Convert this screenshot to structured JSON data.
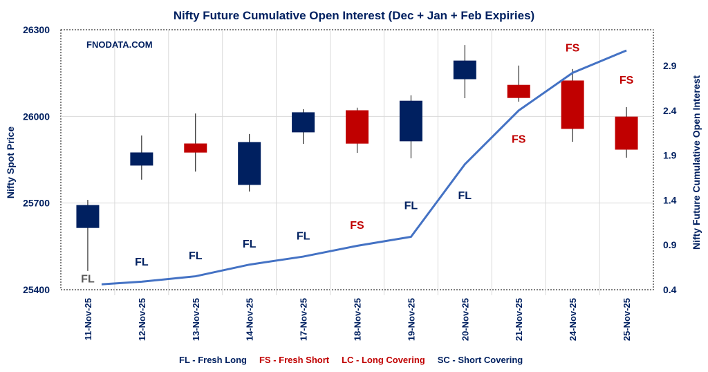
{
  "chart_data": {
    "type": "candlestick+line",
    "title": "Nifty Future Cumulative Open Interest (Dec + Jan  + Feb Expiries)",
    "watermark": "FNODATA.COM",
    "ylabel_left": "Nifty Spot Price",
    "ylabel_right": "Nifty Future Cumulative Open Interest",
    "ylim_left": [
      25400,
      26300
    ],
    "yticks_left": [
      25400,
      25700,
      26000,
      26300
    ],
    "ylim_right": [
      0.4,
      3.2
    ],
    "yticks_right": [
      0.4,
      0.9,
      1.4,
      1.9,
      2.4,
      2.9
    ],
    "grid": true,
    "categories": [
      "11-Nov-25",
      "12-Nov-25",
      "13-Nov-25",
      "14-Nov-25",
      "17-Nov-25",
      "18-Nov-25",
      "19-Nov-25",
      "20-Nov-25",
      "21-Nov-25",
      "24-Nov-25",
      "25-Nov-25"
    ],
    "candles": [
      {
        "open": 25615,
        "high": 25711,
        "low": 25465,
        "close": 25692
      },
      {
        "open": 25831,
        "high": 25934,
        "low": 25781,
        "close": 25874
      },
      {
        "open": 25905,
        "high": 26010,
        "low": 25809,
        "close": 25876
      },
      {
        "open": 25764,
        "high": 25939,
        "low": 25740,
        "close": 25910
      },
      {
        "open": 25946,
        "high": 26025,
        "low": 25905,
        "close": 26013
      },
      {
        "open": 26020,
        "high": 26030,
        "low": 25874,
        "close": 25907
      },
      {
        "open": 25915,
        "high": 26073,
        "low": 25855,
        "close": 26053
      },
      {
        "open": 26130,
        "high": 26247,
        "low": 26063,
        "close": 26192
      },
      {
        "open": 26108,
        "high": 26176,
        "low": 26051,
        "close": 26065
      },
      {
        "open": 26123,
        "high": 26164,
        "low": 25912,
        "close": 25958
      },
      {
        "open": 25998,
        "high": 26032,
        "low": 25857,
        "close": 25886
      }
    ],
    "open_interest": [
      0.45,
      0.49,
      0.55,
      0.68,
      0.77,
      0.89,
      0.99,
      1.8,
      2.4,
      2.82,
      3.07
    ],
    "annotations": [
      "FL",
      "FL",
      "FL",
      "FL",
      "FL",
      "FS",
      "FL",
      "FL",
      "FS",
      "FS",
      "FS"
    ],
    "annotation_values": [
      0.48,
      0.67,
      0.74,
      0.87,
      0.96,
      1.08,
      1.3,
      1.41,
      2.04,
      3.06,
      2.7
    ],
    "legend": [
      {
        "text": "FL - Fresh Long",
        "color": "#002060"
      },
      {
        "text": "FS - Fresh Short",
        "color": "#C00000"
      },
      {
        "text": "LC - Long Covering",
        "color": "#C00000"
      },
      {
        "text": "SC - Short Covering",
        "color": "#002060"
      }
    ],
    "colors": {
      "up": "#002060",
      "down": "#C00000",
      "line": "#4472C4",
      "text": "#002060",
      "fl_first": "#595959"
    }
  }
}
